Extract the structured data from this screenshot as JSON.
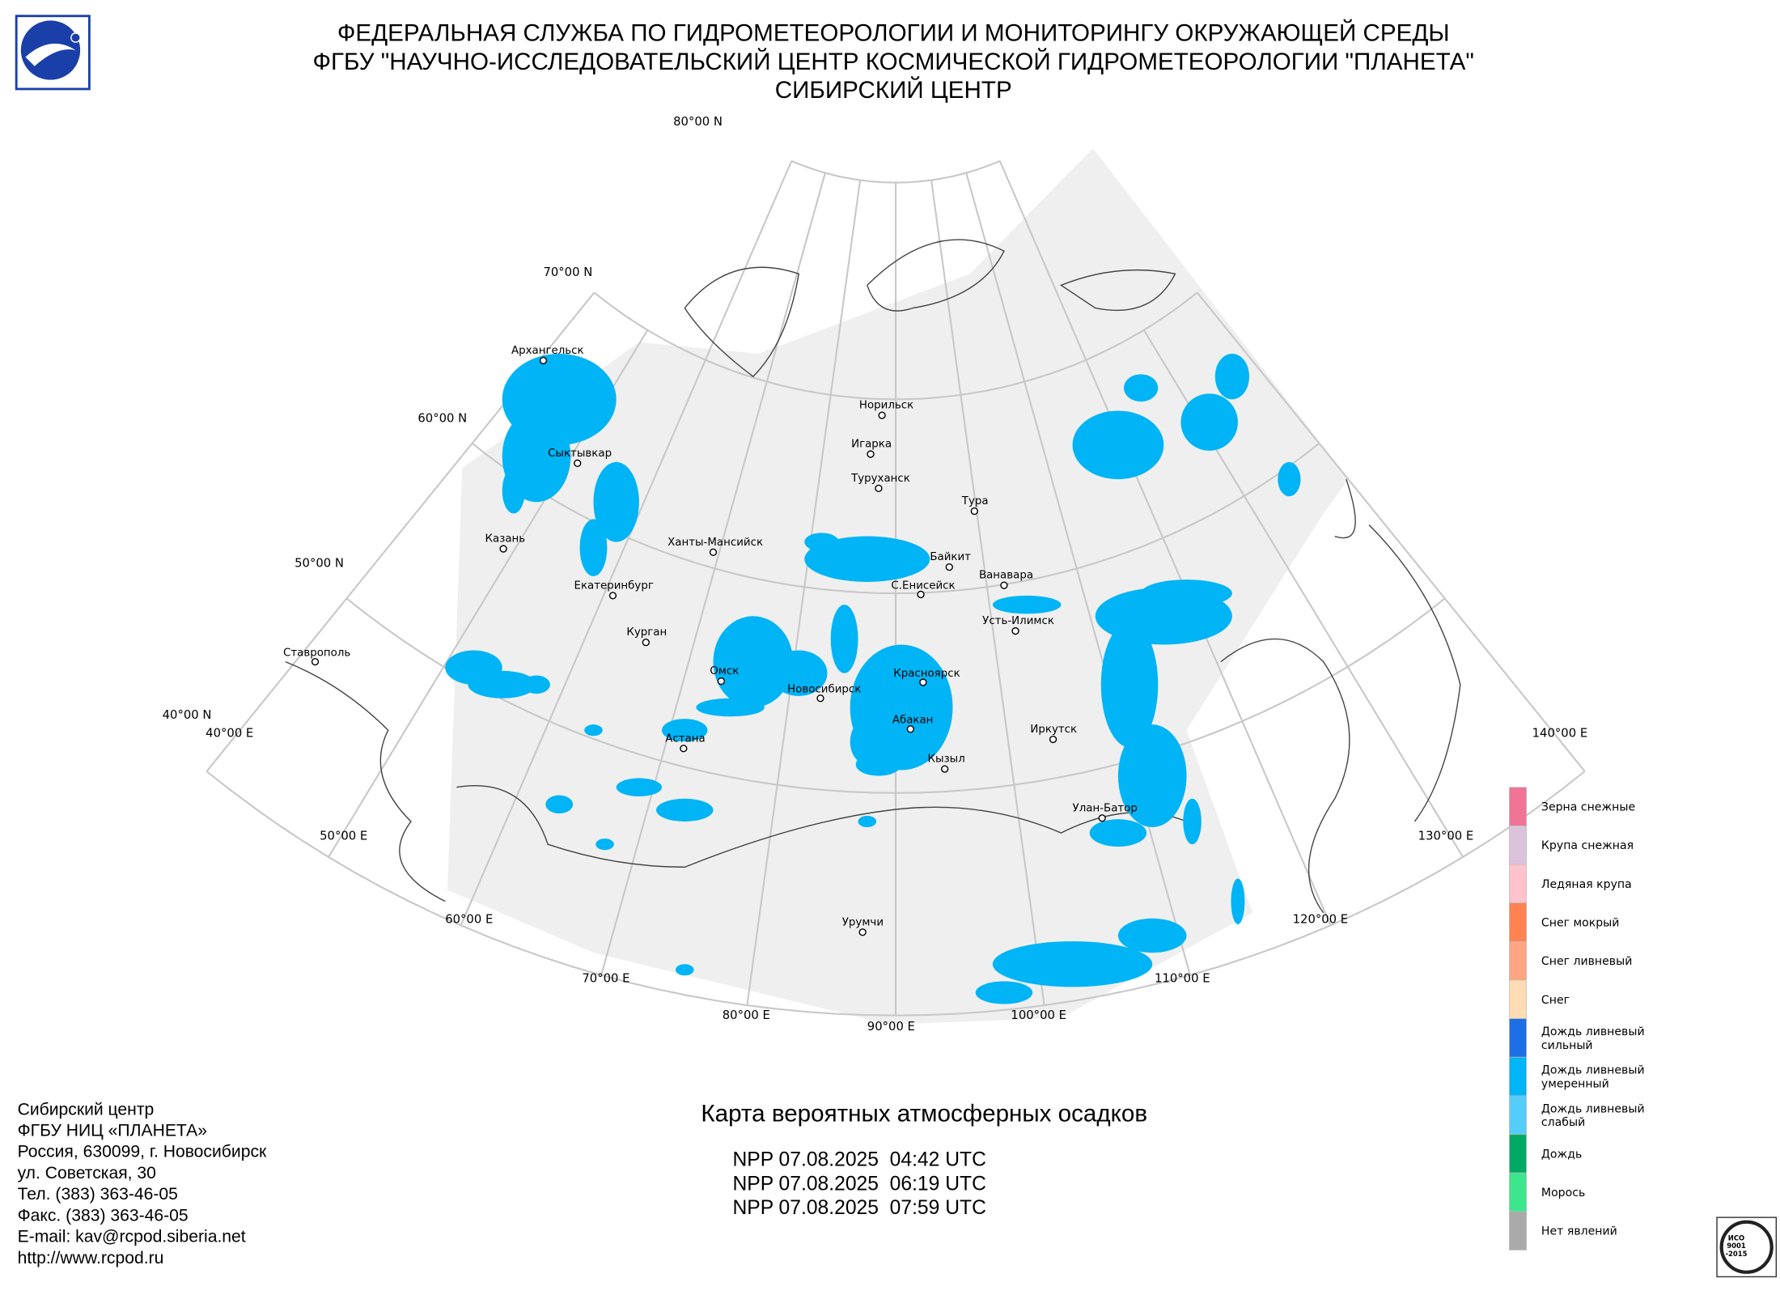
{
  "header": {
    "lines": [
      "ФЕДЕРАЛЬНАЯ СЛУЖБА ПО ГИДРОМЕТЕОРОЛОГИИ И МОНИТОРИНГУ ОКРУЖАЮЩЕЙ СРЕДЫ",
      "ФГБУ \"НАУЧНО-ИССЛЕДОВАТЕЛЬСКИЙ ЦЕНТР КОСМИЧЕСКОЙ ГИДРОМЕТЕОРОЛОГИИ \"ПЛАНЕТА\"",
      "СИБИРСКИЙ ЦЕНТР"
    ]
  },
  "map": {
    "lat_labels": [
      "80°00 N",
      "70°00 N",
      "60°00 N",
      "50°00 N",
      "40°00 N"
    ],
    "lon_labels": [
      "40°00 E",
      "50°00 E",
      "60°00 E",
      "70°00 E",
      "80°00 E",
      "90°00 E",
      "100°00 E",
      "110°00 E",
      "120°00 E",
      "130°00 E",
      "140°00 E"
    ],
    "cities": [
      "Архангельск",
      "Сыктывкар",
      "Казань",
      "Екатеринбург",
      "Курган",
      "Ставрополь",
      "Омск",
      "Астана",
      "Новосибирск",
      "Ханты-Мансийск",
      "Норильск",
      "Игарка",
      "Туруханск",
      "Тура",
      "Байкит",
      "Ванавара",
      "С.Енисейск",
      "Усть-Илимск",
      "Красноярск",
      "Абакан",
      "Кызыл",
      "Иркутск",
      "Улан-Батор",
      "Урумчи"
    ]
  },
  "legend": {
    "items": [
      {
        "label": [
          "Зерна снежные"
        ],
        "color": "#f07496"
      },
      {
        "label": [
          "Крупа снежная"
        ],
        "color": "#dcc3dc"
      },
      {
        "label": [
          "Ледяная крупа"
        ],
        "color": "#ffc3cd"
      },
      {
        "label": [
          "Снег мокрый"
        ],
        "color": "#ff8250"
      },
      {
        "label": [
          "Снег ливневый"
        ],
        "color": "#ffa582"
      },
      {
        "label": [
          "Снег"
        ],
        "color": "#ffdcb4"
      },
      {
        "label": [
          "Дождь ливневый",
          "сильный"
        ],
        "color": "#1e6ee6"
      },
      {
        "label": [
          "Дождь ливневый",
          "умеренный"
        ],
        "color": "#00b4f5"
      },
      {
        "label": [
          "Дождь ливневый",
          "слабый"
        ],
        "color": "#55cdfa"
      },
      {
        "label": [
          "Дождь"
        ],
        "color": "#00aa64"
      },
      {
        "label": [
          "Морось"
        ],
        "color": "#3ce68c"
      },
      {
        "label": [
          "Нет явлений"
        ],
        "color": "#aaaaaa"
      }
    ]
  },
  "footer": {
    "address": [
      "Сибирский центр",
      "ФГБУ НИЦ «ПЛАНЕТА»",
      "Россия, 630099, г. Новосибирск",
      "ул. Советская, 30",
      "Тел. (383) 363-46-05",
      "Факс. (383) 363-46-05",
      "E-mail: kav@rcpod.siberia.net",
      "http://www.rcpod.ru"
    ],
    "title": "Карта вероятных атмосферных осадков",
    "passes": [
      "NPP 07.08.2025  04:42 UTC",
      "NPP 07.08.2025  06:19 UTC",
      "NPP 07.08.2025  07:59 UTC"
    ]
  },
  "badge": {
    "lines": [
      "ИСО",
      "9001",
      "-2015"
    ]
  }
}
